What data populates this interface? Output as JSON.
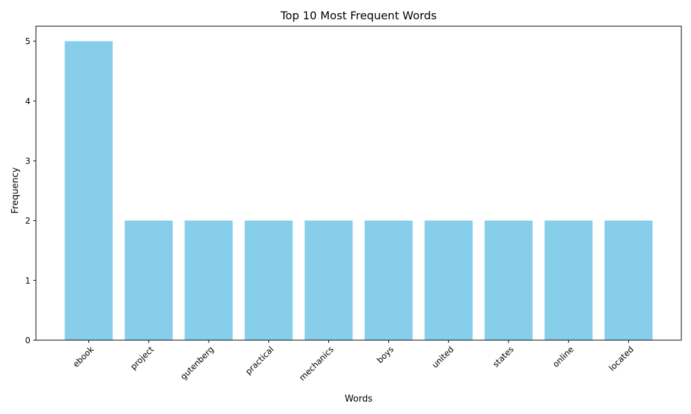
{
  "chart_data": {
    "type": "bar",
    "title": "Top 10 Most Frequent Words",
    "xlabel": "Words",
    "ylabel": "Frequency",
    "categories": [
      "ebook",
      "project",
      "gutenberg",
      "practical",
      "mechanics",
      "boys",
      "united",
      "states",
      "online",
      "located"
    ],
    "values": [
      5,
      2,
      2,
      2,
      2,
      2,
      2,
      2,
      2,
      2
    ],
    "ylim": [
      0,
      5.25
    ],
    "yticks": [
      0,
      1,
      2,
      3,
      4,
      5
    ],
    "grid": false,
    "legend": "none",
    "bar_color": "#87ceeb"
  }
}
